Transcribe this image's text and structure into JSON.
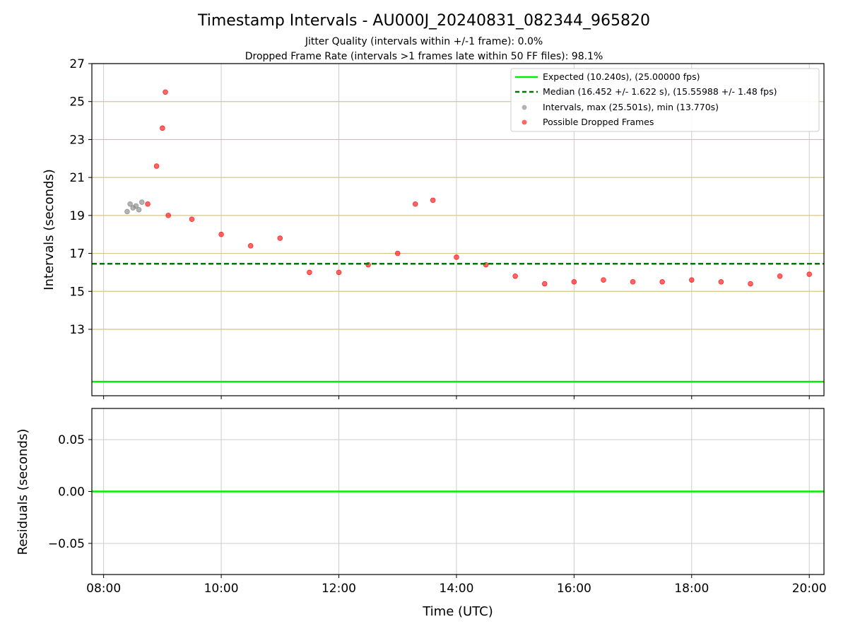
{
  "title": "Timestamp Intervals - AU000J_20240831_082344_965820",
  "subtitle1": "Jitter Quality (intervals within +/-1 frame): 0.0%",
  "subtitle2": "Dropped Frame Rate (intervals >1 frames late within 50 FF files): 98.1%",
  "colors": {
    "expected": "#00ee00",
    "median": "#007700",
    "intervals": "#808080",
    "dropped": "#ff0000",
    "hgrid_top": "#d8c48a",
    "grid": "#cccccc"
  },
  "chart_data": [
    {
      "type": "scatter",
      "xlabel": "",
      "ylabel": "Intervals (seconds)",
      "xlim": [
        7.8,
        20.25
      ],
      "ylim": [
        9.5,
        27
      ],
      "yticks": [
        13,
        15,
        17,
        19,
        21,
        23,
        25,
        27
      ],
      "ytick_labels": [
        "13",
        "15",
        "17",
        "19",
        "21",
        "23",
        "25",
        "27"
      ],
      "reference_lines": {
        "expected": 10.24,
        "median": 16.452
      },
      "legend_position": "upper right",
      "legend": [
        "Expected (10.240s), (25.00000 fps)",
        "Median (16.452 +/- 1.622 s), (15.55988 +/- 1.48 fps)",
        "Intervals, max (25.501s), min (13.770s)",
        "Possible Dropped Frames"
      ],
      "series": [
        {
          "name": "Intervals, max (25.501s), min (13.770s)",
          "color": "#808080",
          "x": [
            8.4,
            8.45,
            8.5,
            8.55,
            8.6,
            8.65
          ],
          "y": [
            19.2,
            19.6,
            19.4,
            19.5,
            19.3,
            19.7
          ]
        },
        {
          "name": "Possible Dropped Frames",
          "color": "#ff0000",
          "x": [
            8.75,
            8.9,
            9.0,
            9.05,
            9.1,
            9.5,
            10.0,
            10.5,
            11.0,
            11.5,
            12.0,
            12.5,
            13.0,
            13.3,
            13.6,
            14.0,
            14.5,
            15.0,
            15.5,
            16.0,
            16.5,
            17.0,
            17.5,
            18.0,
            18.5,
            19.0,
            19.5,
            20.0
          ],
          "y": [
            19.6,
            21.6,
            23.6,
            25.5,
            19.0,
            18.8,
            18.0,
            17.4,
            17.8,
            16.0,
            16.0,
            16.4,
            17.0,
            19.6,
            19.8,
            16.8,
            16.4,
            15.8,
            15.4,
            15.5,
            15.6,
            15.5,
            15.5,
            15.6,
            15.5,
            15.4,
            15.8,
            15.9
          ]
        }
      ]
    },
    {
      "type": "line",
      "xlabel": "Time (UTC)",
      "ylabel": "Residuals (seconds)",
      "xlim": [
        7.8,
        20.25
      ],
      "ylim": [
        -0.08,
        0.08
      ],
      "yticks": [
        0.05,
        0.0,
        -0.05
      ],
      "ytick_labels": [
        "0.05",
        "0.00",
        "−0.05"
      ],
      "xticks": [
        8,
        10,
        12,
        14,
        16,
        18,
        20
      ],
      "xtick_labels": [
        "08:00",
        "10:00",
        "12:00",
        "14:00",
        "16:00",
        "18:00",
        "20:00"
      ],
      "series": [
        {
          "name": "Expected",
          "color": "#00ee00",
          "x": [
            7.8,
            20.25
          ],
          "y": [
            0,
            0
          ]
        }
      ]
    }
  ]
}
